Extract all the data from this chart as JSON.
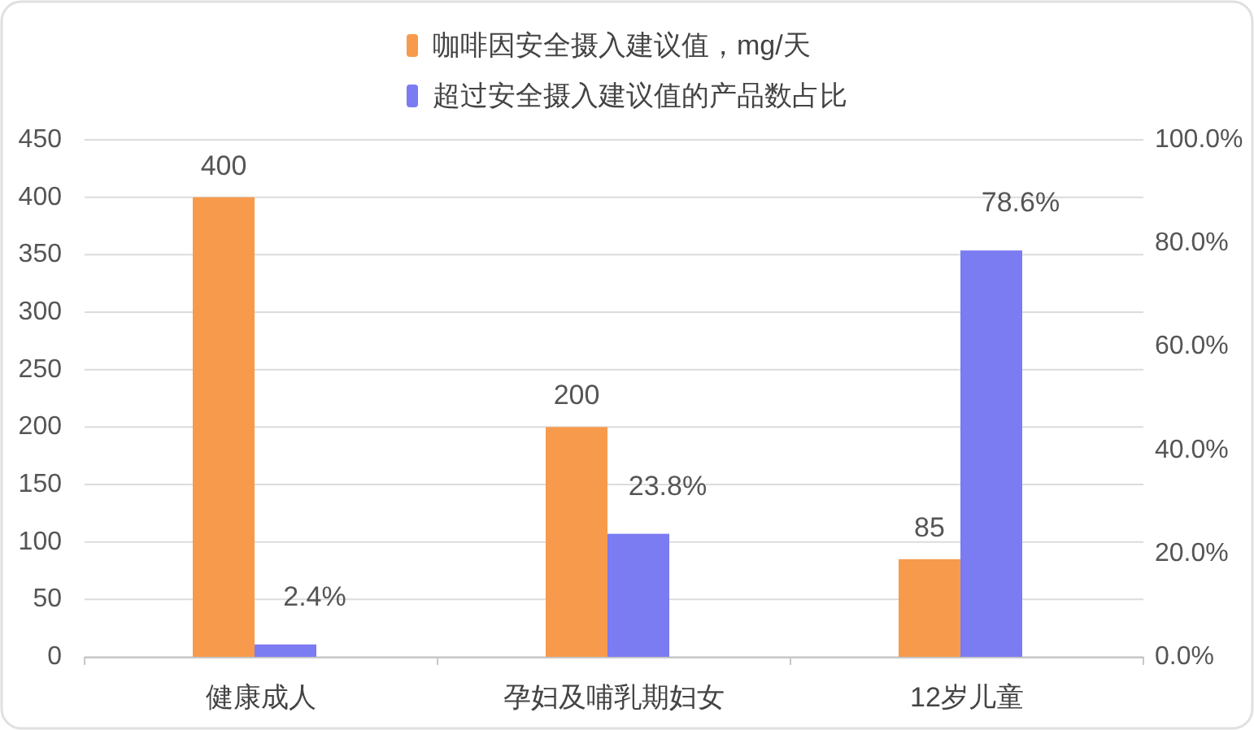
{
  "chart_data": {
    "type": "bar",
    "categories": [
      "健康成人",
      "孕妇及哺乳期妇女",
      "12岁儿童"
    ],
    "series": [
      {
        "name": "咖啡因安全摄入建议值，mg/天",
        "color": "#f79a4b",
        "values": [
          400,
          200,
          85
        ],
        "value_labels": [
          "400",
          "200",
          "85"
        ]
      },
      {
        "name": "超过安全摄入建议值的产品数占比",
        "color": "#7b7bf2",
        "values": [
          2.4,
          23.8,
          78.6
        ],
        "axis": "y2",
        "value_labels": [
          "2.4%",
          "23.8%",
          "78.6%"
        ]
      }
    ],
    "ylim": [
      0,
      450
    ],
    "yticks": [
      0,
      50,
      100,
      150,
      200,
      250,
      300,
      350,
      400,
      450
    ],
    "y2lim": [
      0,
      100
    ],
    "y2ticks": [
      {
        "value": 0,
        "label": "0.0%"
      },
      {
        "value": 20,
        "label": "20.0%"
      },
      {
        "value": 40,
        "label": "40.0%"
      },
      {
        "value": 60,
        "label": "60.0%"
      },
      {
        "value": 80,
        "label": "80.0%"
      },
      {
        "value": 100,
        "label": "100.0%"
      }
    ],
    "grid": "y",
    "legend": "top"
  }
}
